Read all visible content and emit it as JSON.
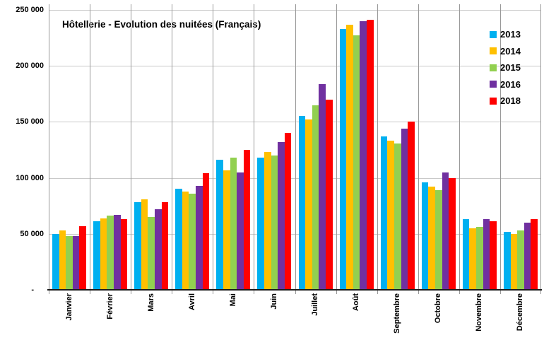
{
  "chart_data": {
    "type": "bar",
    "title": "Hôtellerie - Evolution des nuitées (Français)",
    "categories": [
      "Janvier",
      "Février",
      "Mars",
      "Avril",
      "Mai",
      "Juin",
      "Juillet",
      "Août",
      "Septembre",
      "Octobre",
      "Novembre",
      "Décembre"
    ],
    "series": [
      {
        "name": "2013",
        "color": "#00B0F0",
        "values": [
          50000,
          61000,
          78000,
          90000,
          116000,
          118000,
          155000,
          233000,
          137000,
          96000,
          63000,
          52000
        ]
      },
      {
        "name": "2014",
        "color": "#FFC000",
        "values": [
          53000,
          64000,
          81000,
          88000,
          107000,
          123000,
          152000,
          237000,
          133000,
          92000,
          55000,
          50000
        ]
      },
      {
        "name": "2015",
        "color": "#92D050",
        "values": [
          48000,
          66000,
          65000,
          86000,
          118000,
          120000,
          165000,
          227000,
          131000,
          89000,
          56000,
          53000
        ]
      },
      {
        "name": "2016",
        "color": "#7030A0",
        "values": [
          48000,
          67000,
          72000,
          93000,
          105000,
          132000,
          184000,
          240000,
          144000,
          105000,
          63000,
          60000
        ]
      },
      {
        "name": "2018",
        "color": "#FF0000",
        "values": [
          57000,
          63000,
          78000,
          104000,
          125000,
          140000,
          170000,
          241000,
          150000,
          100000,
          61000,
          63000
        ]
      }
    ],
    "xlabel": "",
    "ylabel": "",
    "ylim": [
      0,
      250000
    ],
    "yticks": [
      {
        "value": 0,
        "label": "-"
      },
      {
        "value": 50000,
        "label": "50 000"
      },
      {
        "value": 100000,
        "label": "100 000"
      },
      {
        "value": 150000,
        "label": "150 000"
      },
      {
        "value": 200000,
        "label": "200 000"
      },
      {
        "value": 250000,
        "label": "250 000"
      }
    ],
    "grid": true,
    "legend_position": "top-right",
    "gridline_color_horizontal": "#C9C9C9",
    "gridline_color_vertical": "#999999",
    "axis_color": "#1A1A1A"
  }
}
